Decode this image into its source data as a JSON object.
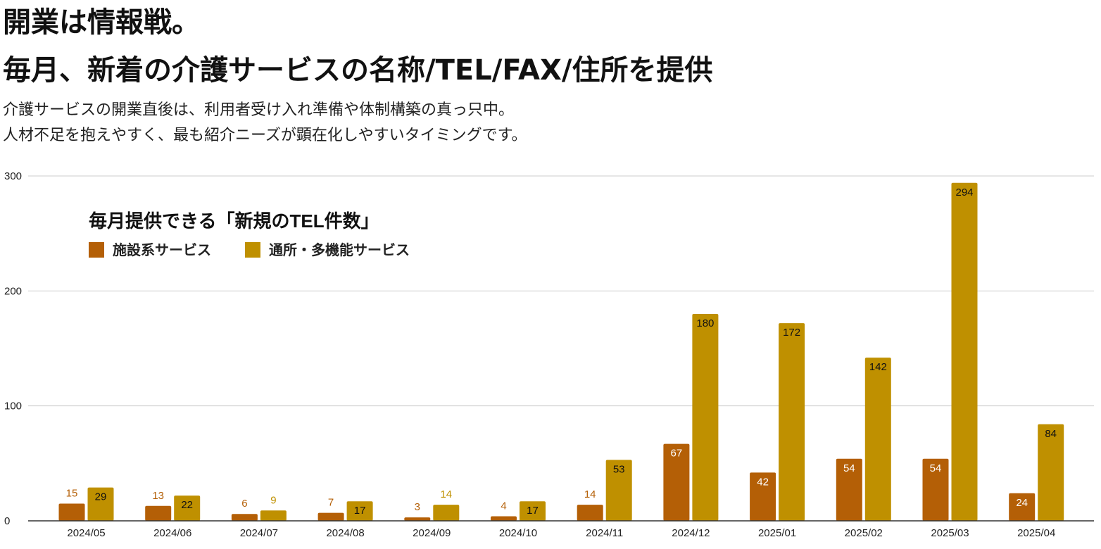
{
  "header": {
    "title_line1": "開業は情報戦。",
    "title_line2": "毎月、新着の介護サービスの名称/TEL/FAX/住所を提供",
    "subtitle_line1": "介護サービスの開業直後は、利用者受け入れ準備や体制構築の真っ只中。",
    "subtitle_line2": "人材不足を抱えやすく、最も紹介ニーズが顕在化しやすいタイミングです。"
  },
  "colors": {
    "series1": "#b45f06",
    "series2": "#bf9000",
    "grid": "#cccccc",
    "axis": "#333333"
  },
  "chart_data": {
    "type": "bar",
    "title": "毎月提供できる「新規のTEL件数」",
    "categories": [
      "2024/05",
      "2024/06",
      "2024/07",
      "2024/08",
      "2024/09",
      "2024/10",
      "2024/11",
      "2024/12",
      "2025/01",
      "2025/02",
      "2025/03",
      "2025/04"
    ],
    "series": [
      {
        "name": "施設系サービス",
        "values": [
          15,
          13,
          6,
          7,
          3,
          4,
          14,
          67,
          42,
          54,
          54,
          24
        ]
      },
      {
        "name": "通所・多機能サービス",
        "values": [
          29,
          22,
          9,
          17,
          14,
          17,
          53,
          180,
          172,
          142,
          294,
          84
        ]
      }
    ],
    "yticks": [
      0,
      100,
      200,
      300
    ],
    "ylim": [
      0,
      300
    ],
    "grid": true,
    "legend_position": "top-left"
  }
}
